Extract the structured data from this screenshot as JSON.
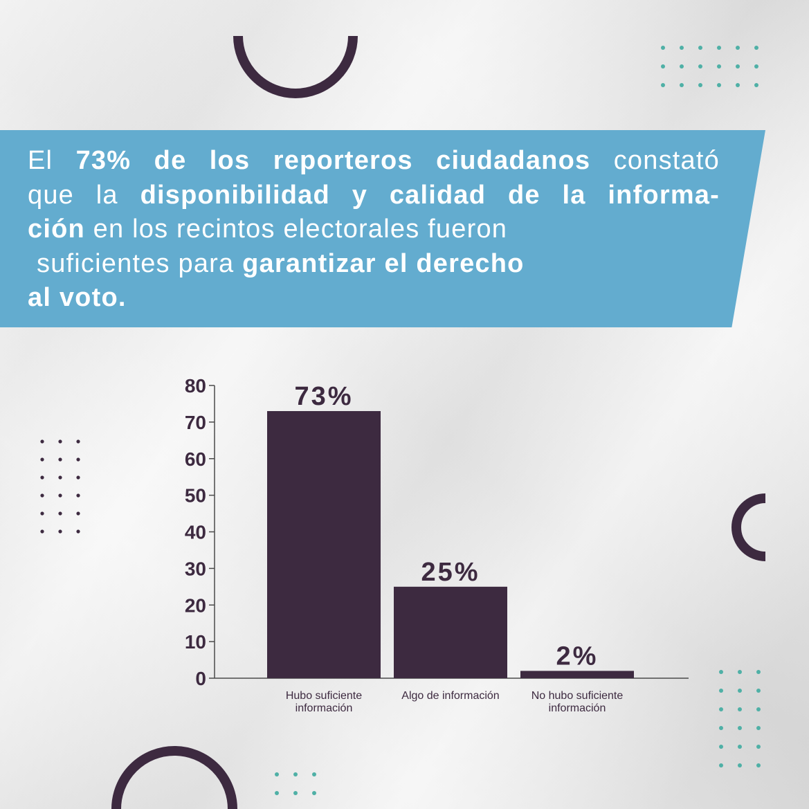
{
  "headline": {
    "line1": [
      "El ",
      "73% de los reporteros ciudadanos",
      " constató"
    ],
    "line2": [
      "que la ",
      "disponibilidad y calidad de la informa-"
    ],
    "line3": [
      "ción",
      " en los recintos electorales fueron"
    ],
    "line4": [
      "suficientes para ",
      "garantizar el derecho"
    ],
    "line5": [
      "al voto."
    ]
  },
  "colors": {
    "banner": "#63accf",
    "bar": "#3d2a40",
    "teal_dots": "#4fb0a6",
    "dark_dots": "#3d2a40"
  },
  "chart_data": {
    "type": "bar",
    "categories": [
      [
        "Hubo suficiente",
        "información"
      ],
      [
        "Algo de información"
      ],
      [
        "No hubo suficiente",
        "información"
      ]
    ],
    "values": [
      73,
      25,
      2
    ],
    "data_labels": [
      "73%",
      "25%",
      "2%"
    ],
    "yticks": [
      "0",
      "10",
      "20",
      "30",
      "40",
      "50",
      "60",
      "70",
      "80"
    ],
    "ylim": [
      0,
      80
    ],
    "grid": false,
    "legend": "none"
  }
}
